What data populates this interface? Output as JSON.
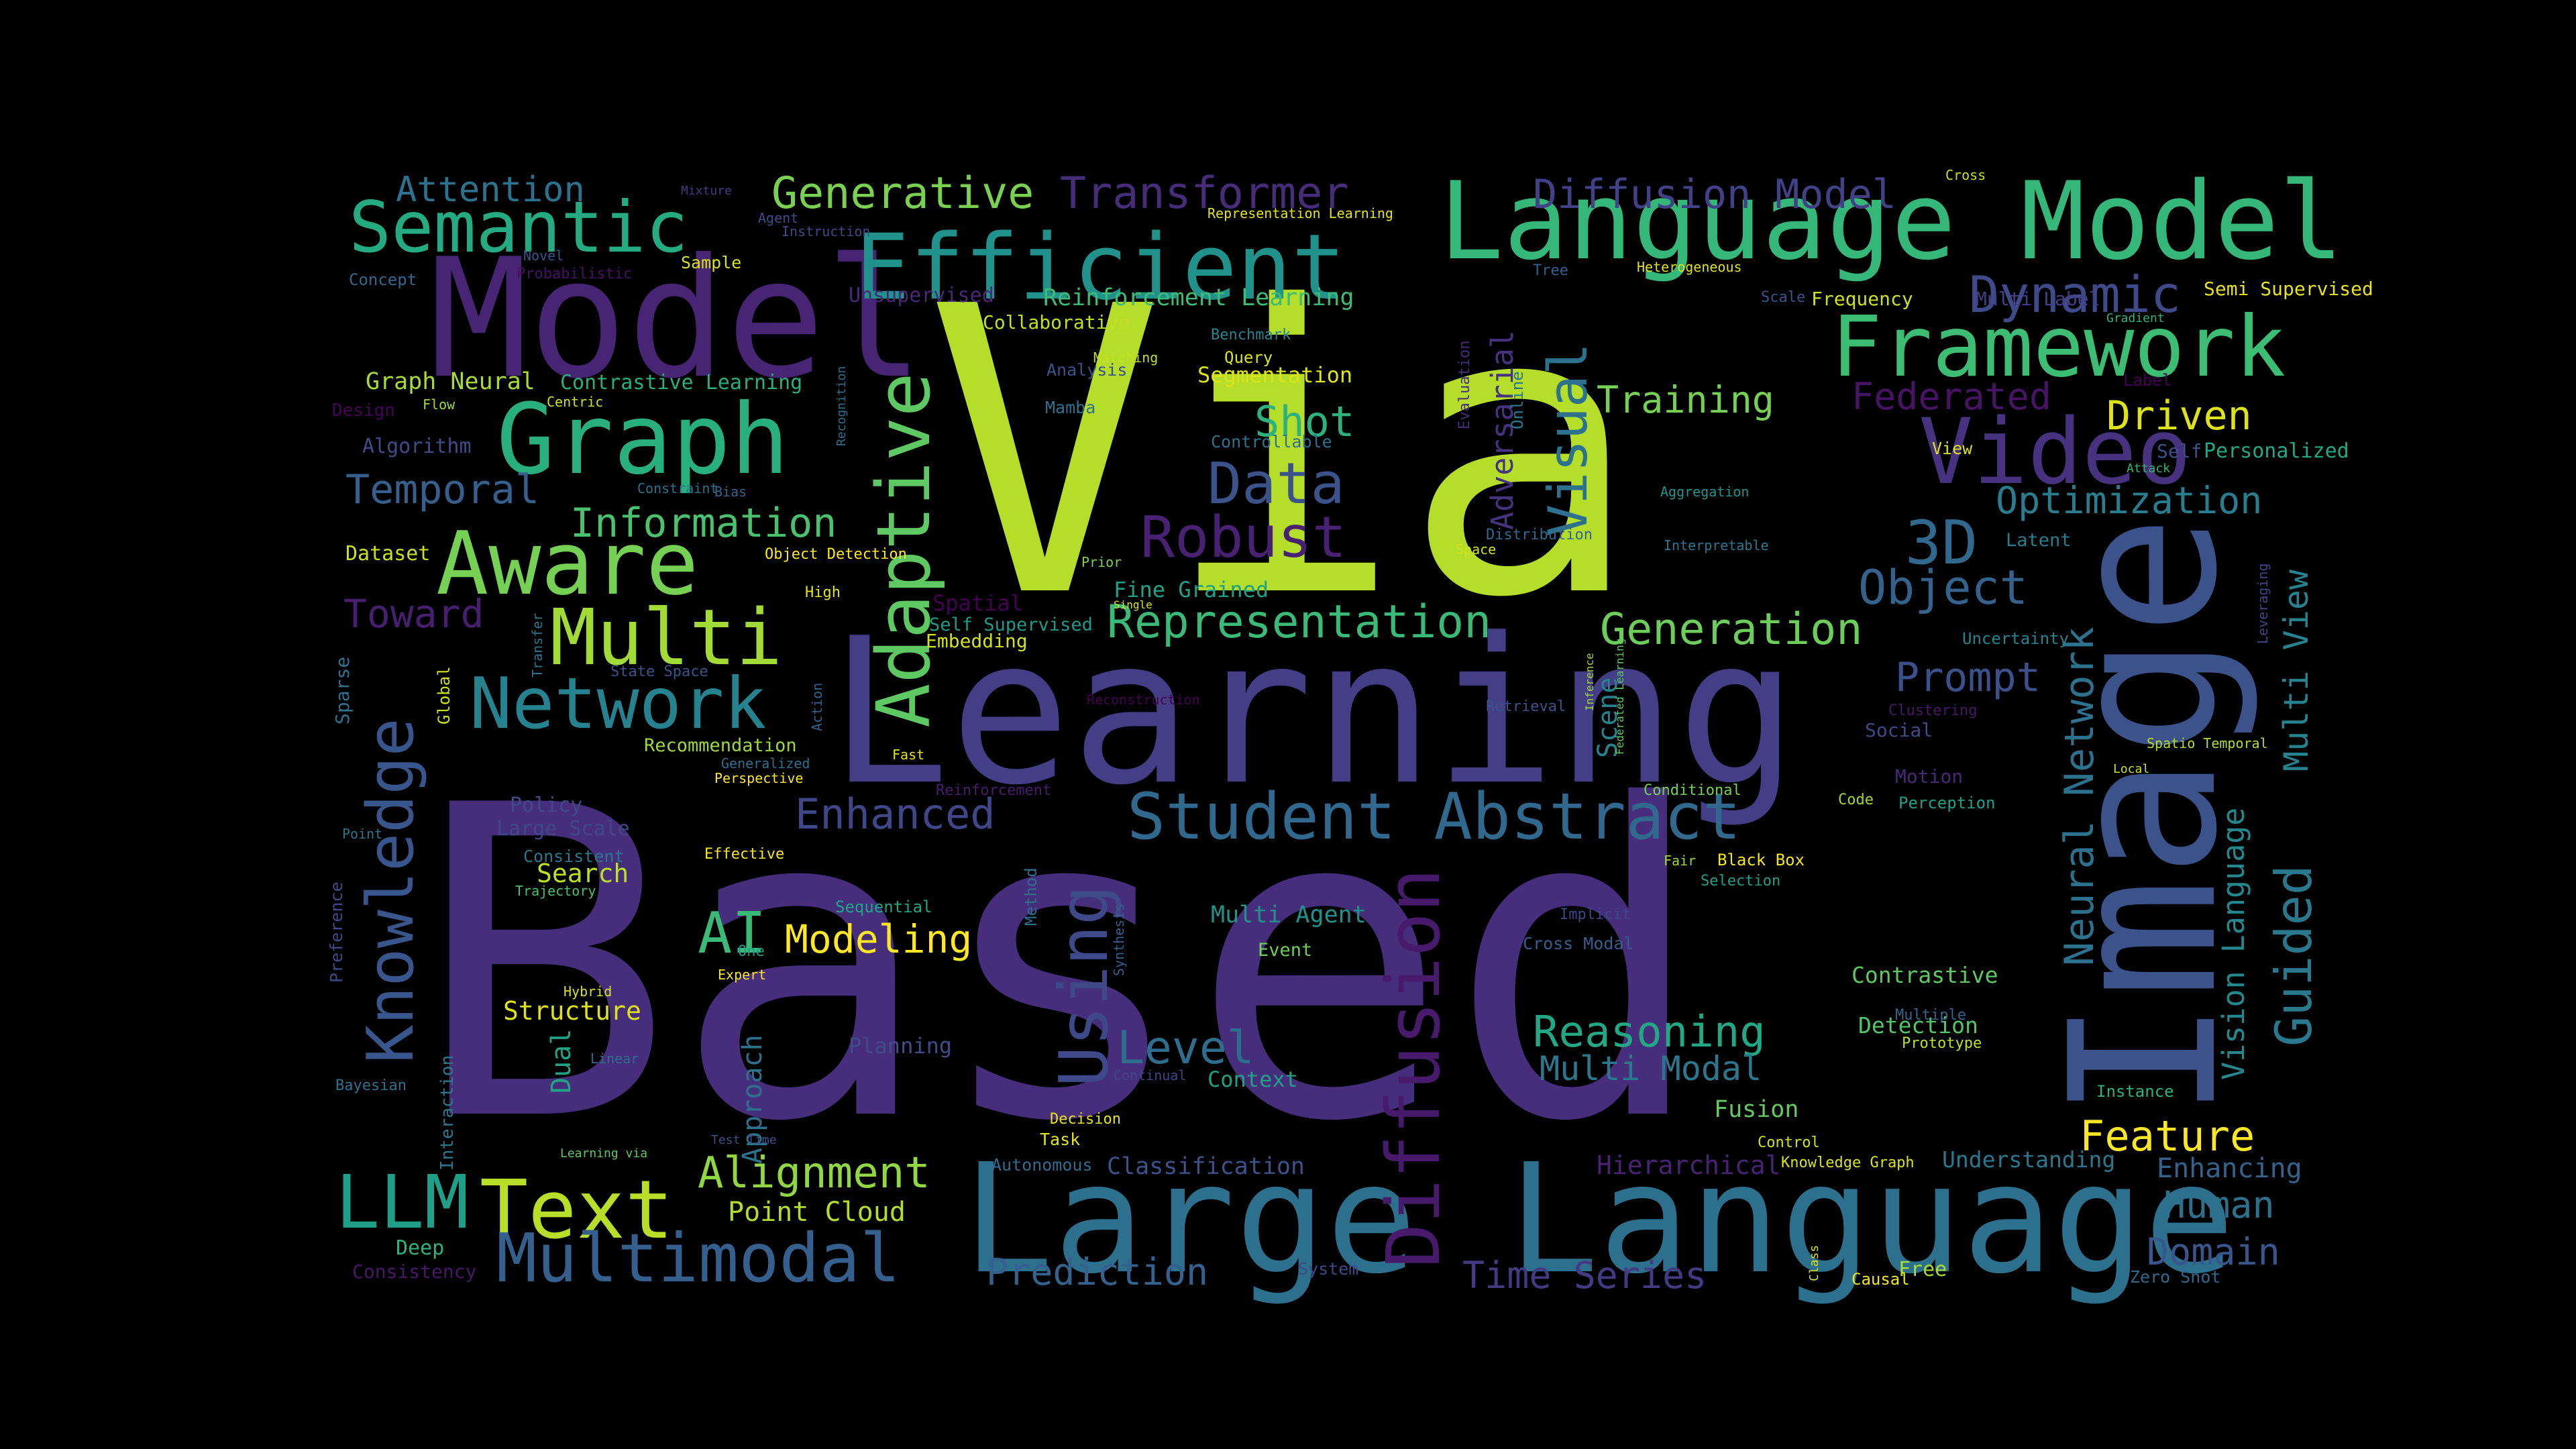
{
  "words": [
    {
      "t": "Based",
      "c": "#472e7c"
    },
    {
      "t": "Via",
      "c": "#b5de2b"
    },
    {
      "t": "Learning",
      "c": "#433e85"
    },
    {
      "t": "Image",
      "c": "#3b528b"
    },
    {
      "t": "Large Language",
      "c": "#2d708e"
    },
    {
      "t": "Language Model",
      "c": "#35b779"
    },
    {
      "t": "Model",
      "c": "#482475"
    },
    {
      "t": "Efficient",
      "c": "#21918c"
    },
    {
      "t": "Graph",
      "c": "#29af7f"
    },
    {
      "t": "Framework",
      "c": "#3dbc74"
    },
    {
      "t": "Semantic",
      "c": "#25ab82"
    },
    {
      "t": "Multi",
      "c": "#a2da37"
    },
    {
      "t": "Aware",
      "c": "#75d054"
    },
    {
      "t": "Adaptive",
      "c": "#5ec962"
    },
    {
      "t": "Video",
      "c": "#46327e"
    },
    {
      "t": "Student Abstract",
      "c": "#31688e"
    },
    {
      "t": "Diffusion",
      "c": "#481a6c"
    },
    {
      "t": "Knowledge",
      "c": "#39568c"
    },
    {
      "t": "Network",
      "c": "#26828e"
    },
    {
      "t": "Using",
      "c": "#3e4989"
    },
    {
      "t": "Text",
      "c": "#b8de29"
    },
    {
      "t": "Multimodal",
      "c": "#355f8d"
    },
    {
      "t": "LLM",
      "c": "#1f9e89"
    },
    {
      "t": "Guided",
      "c": "#2a788e"
    },
    {
      "t": "Neural Network",
      "c": "#2c728e"
    },
    {
      "t": "Robust",
      "c": "#482173"
    },
    {
      "t": "Data",
      "c": "#3b528b"
    },
    {
      "t": "Dynamic",
      "c": "#3e4a89"
    },
    {
      "t": "3D",
      "c": "#31688e"
    },
    {
      "t": "Representation",
      "c": "#3aba76"
    },
    {
      "t": "Generation",
      "c": "#6ccd5a"
    },
    {
      "t": "Object",
      "c": "#33638d"
    },
    {
      "t": "Generative",
      "c": "#7ad151"
    },
    {
      "t": "Transformer",
      "c": "#472c7a"
    },
    {
      "t": "Diffusion Model",
      "c": "#424086"
    },
    {
      "t": "Attention",
      "c": "#2c718e"
    },
    {
      "t": "Visual",
      "c": "#2c728e"
    },
    {
      "t": "Reasoning",
      "c": "#22a884"
    },
    {
      "t": "Feature",
      "c": "#fde725"
    },
    {
      "t": "Alignment",
      "c": "#90d743"
    },
    {
      "t": "Temporal",
      "c": "#355f8d"
    },
    {
      "t": "Information",
      "c": "#4ac16d"
    },
    {
      "t": "Enhanced",
      "c": "#3f4788"
    },
    {
      "t": "Level",
      "c": "#2e6d8e"
    },
    {
      "t": "Prediction",
      "c": "#34618d"
    },
    {
      "t": "Time Series",
      "c": "#443983"
    },
    {
      "t": "AI",
      "c": "#3aba76"
    },
    {
      "t": "Modeling",
      "c": "#fde725"
    },
    {
      "t": "Toward",
      "c": "#481f70"
    },
    {
      "t": "Training",
      "c": "#75d054"
    },
    {
      "t": "Driven",
      "c": "#dde318"
    },
    {
      "t": "Shot",
      "c": "#2db27d"
    },
    {
      "t": "Federated",
      "c": "#471365"
    },
    {
      "t": "Prompt",
      "c": "#3c508b"
    },
    {
      "t": "Optimization",
      "c": "#287d8e"
    },
    {
      "t": "Multi View",
      "c": "#26828e"
    },
    {
      "t": "Vision Language",
      "c": "#24878e"
    },
    {
      "t": "Multi Modal",
      "c": "#2a778e"
    },
    {
      "t": "Domain",
      "c": "#39568c"
    },
    {
      "t": "Human",
      "c": "#2d708e"
    },
    {
      "t": "Enhancing",
      "c": "#33638d"
    },
    {
      "t": "Scene",
      "c": "#26828e"
    },
    {
      "t": "Adversarial",
      "c": "#46327e"
    },
    {
      "t": "Point Cloud",
      "c": "#b2dd2d"
    },
    {
      "t": "Structure",
      "c": "#dde318"
    },
    {
      "t": "Hierarchical",
      "c": "#482374"
    },
    {
      "t": "Contrastive",
      "c": "#5ec962"
    },
    {
      "t": "Detection",
      "c": "#52c569"
    },
    {
      "t": "Fusion",
      "c": "#65cb5e"
    },
    {
      "t": "Understanding",
      "c": "#2a778e"
    },
    {
      "t": "Multi Agent",
      "c": "#21918c"
    },
    {
      "t": "Reinforcement Learning",
      "c": "#3dbc74"
    },
    {
      "t": "Graph Neural",
      "c": "#a8db34"
    },
    {
      "t": "Contrastive Learning",
      "c": "#28ae80"
    },
    {
      "t": "Segmentation",
      "c": "#dde318"
    },
    {
      "t": "Unsupervised",
      "c": "#482878"
    },
    {
      "t": "Collaborative",
      "c": "#c0df25"
    },
    {
      "t": "Fine Grained",
      "c": "#1fa188"
    },
    {
      "t": "Spatial",
      "c": "#440154"
    },
    {
      "t": "Embedding",
      "c": "#d2e21b"
    },
    {
      "t": "Self Supervised",
      "c": "#1f9a8a"
    },
    {
      "t": "Classification",
      "c": "#3b528b"
    },
    {
      "t": "Context",
      "c": "#1fa188"
    },
    {
      "t": "Planning",
      "c": "#3e4c8a"
    },
    {
      "t": "Approach",
      "c": "#2c718e"
    },
    {
      "t": "Dual",
      "c": "#20a386"
    },
    {
      "t": "Search",
      "c": "#bddf26"
    },
    {
      "t": "Large Scale",
      "c": "#3f4889"
    },
    {
      "t": "Policy",
      "c": "#3e4a89"
    },
    {
      "t": "Consistent",
      "c": "#2a788e"
    },
    {
      "t": "Recommendation",
      "c": "#9dd93b"
    },
    {
      "t": "Algorithm",
      "c": "#3e4c8a"
    },
    {
      "t": "Dataset",
      "c": "#c8e020"
    },
    {
      "t": "Deep",
      "c": "#2eb37c"
    },
    {
      "t": "Consistency",
      "c": "#481769"
    },
    {
      "t": "Concept",
      "c": "#31688e"
    },
    {
      "t": "Design",
      "c": "#450457"
    },
    {
      "t": "Sparse",
      "c": "#2d718e"
    },
    {
      "t": "Preference",
      "c": "#3e4a89"
    },
    {
      "t": "Interaction",
      "c": "#2a788e"
    },
    {
      "t": "Bayesian",
      "c": "#2c728e"
    },
    {
      "t": "Hybrid",
      "c": "#d8e219"
    },
    {
      "t": "Linear",
      "c": "#306a8e"
    },
    {
      "t": "Learning via",
      "c": "#5ec962"
    },
    {
      "t": "Test Time",
      "c": "#3b528b"
    },
    {
      "t": "Autonomous",
      "c": "#2f6c8e"
    },
    {
      "t": "Decision",
      "c": "#e5e419"
    },
    {
      "t": "Task",
      "c": "#e2e418"
    },
    {
      "t": "Control",
      "c": "#d0e11c"
    },
    {
      "t": "Instance",
      "c": "#2db27d"
    },
    {
      "t": "Free",
      "c": "#a5db36"
    },
    {
      "t": "Causal",
      "c": "#f1e51d"
    },
    {
      "t": "Zero Shot",
      "c": "#31688e"
    },
    {
      "t": "System",
      "c": "#3e4989"
    },
    {
      "t": "Knowledge Graph",
      "c": "#dae319"
    },
    {
      "t": "Black Box",
      "c": "#f4e61e"
    },
    {
      "t": "Selection",
      "c": "#1f9e89"
    },
    {
      "t": "Fair",
      "c": "#a0da39"
    },
    {
      "t": "Cross Modal",
      "c": "#365d8d"
    },
    {
      "t": "Implicit",
      "c": "#3f4788"
    },
    {
      "t": "Event",
      "c": "#6ece58"
    },
    {
      "t": "Sequential",
      "c": "#20a486"
    },
    {
      "t": "One",
      "c": "#1e9c89"
    },
    {
      "t": "Expert",
      "c": "#fbe723"
    },
    {
      "t": "Method",
      "c": "#2e6e8e"
    },
    {
      "t": "Synthesis",
      "c": "#355f8d"
    },
    {
      "t": "Continual",
      "c": "#404588"
    },
    {
      "t": "Effective",
      "c": "#f8e621"
    },
    {
      "t": "Trajectory",
      "c": "#4ac16d"
    },
    {
      "t": "Point",
      "c": "#2b758e"
    },
    {
      "t": "Generalized",
      "c": "#2e6f8e"
    },
    {
      "t": "Perspective",
      "c": "#fde725"
    },
    {
      "t": "Fast",
      "c": "#e7e419"
    },
    {
      "t": "Reinforcement",
      "c": "#481b6d"
    },
    {
      "t": "Conditional",
      "c": "#75d054"
    },
    {
      "t": "Code",
      "c": "#a0da39"
    },
    {
      "t": "Perception",
      "c": "#1fa088"
    },
    {
      "t": "Motion",
      "c": "#482979"
    },
    {
      "t": "Multiple",
      "c": "#32658e"
    },
    {
      "t": "Prototype",
      "c": "#c2df23"
    },
    {
      "t": "Local",
      "c": "#cde11d"
    },
    {
      "t": "Spatio Temporal",
      "c": "#b5de2b"
    },
    {
      "t": "Clustering",
      "c": "#481769"
    },
    {
      "t": "Uncertainty",
      "c": "#26828e"
    },
    {
      "t": "Leveraging",
      "c": "#404588"
    },
    {
      "t": "Latent",
      "c": "#287c8e"
    },
    {
      "t": "Attack",
      "c": "#34b679"
    },
    {
      "t": "Personalized",
      "c": "#22a785"
    },
    {
      "t": "Self",
      "c": "#3b528b"
    },
    {
      "t": "View",
      "c": "#dde318"
    },
    {
      "t": "Label",
      "c": "#440154"
    },
    {
      "t": "Semi Supervised",
      "c": "#e7e419"
    },
    {
      "t": "Gradient",
      "c": "#2eb37c"
    },
    {
      "t": "Multi Label",
      "c": "#433e85"
    },
    {
      "t": "Frequency",
      "c": "#cde11d"
    },
    {
      "t": "Scale",
      "c": "#3b528b"
    },
    {
      "t": "Heterogeneous",
      "c": "#dde318"
    },
    {
      "t": "Tree",
      "c": "#355f8d"
    },
    {
      "t": "Evaluation",
      "c": "#472d7b"
    },
    {
      "t": "Online",
      "c": "#2a788e"
    },
    {
      "t": "Distribution",
      "c": "#31688e"
    },
    {
      "t": "Space",
      "c": "#d2e21b"
    },
    {
      "t": "Aggregation",
      "c": "#1f958b"
    },
    {
      "t": "Interpretable",
      "c": "#2a788e"
    },
    {
      "t": "Inference",
      "c": "#9dd93b"
    },
    {
      "t": "Federated Learning",
      "c": "#5ec962"
    },
    {
      "t": "Retrieval",
      "c": "#3b528b"
    },
    {
      "t": "Social",
      "c": "#3e4a89"
    },
    {
      "t": "Cross",
      "c": "#c8e020"
    },
    {
      "t": "Representation Learning",
      "c": "#e5e419"
    },
    {
      "t": "Instruction",
      "c": "#3e4989"
    },
    {
      "t": "Agent",
      "c": "#3e4c8a"
    },
    {
      "t": "Mixture",
      "c": "#443a83"
    },
    {
      "t": "Novel",
      "c": "#3b528b"
    },
    {
      "t": "Probabilistic",
      "c": "#471063"
    },
    {
      "t": "Sample",
      "c": "#d8e219"
    },
    {
      "t": "Flow",
      "c": "#9fda3a"
    },
    {
      "t": "Centric",
      "c": "#d2e21b"
    },
    {
      "t": "Constraint",
      "c": "#2c718e"
    },
    {
      "t": "Bias",
      "c": "#32658e"
    },
    {
      "t": "Object Detection",
      "c": "#fde725"
    },
    {
      "t": "Recognition",
      "c": "#2c718e"
    },
    {
      "t": "High",
      "c": "#e2e418"
    },
    {
      "t": "Transfer",
      "c": "#2b748e"
    },
    {
      "t": "Global",
      "c": "#cde11d"
    },
    {
      "t": "Action",
      "c": "#33638d"
    },
    {
      "t": "State Space",
      "c": "#3b528b"
    },
    {
      "t": "Reconstruction",
      "c": "#440154"
    },
    {
      "t": "Prior",
      "c": "#7ad151"
    },
    {
      "t": "Single",
      "c": "#e2e418"
    },
    {
      "t": "Controllable",
      "c": "#2c718e"
    },
    {
      "t": "Matching",
      "c": "#c2df23"
    },
    {
      "t": "Query",
      "c": "#dae319"
    },
    {
      "t": "Benchmark",
      "c": "#24868e"
    },
    {
      "t": "Analysis",
      "c": "#3b528b"
    },
    {
      "t": "Mamba",
      "c": "#2c718e"
    },
    {
      "t": "Class",
      "c": "#dde318"
    },
    {
      "t": "Unified",
      "c": "#2c718e"
    }
  ]
}
